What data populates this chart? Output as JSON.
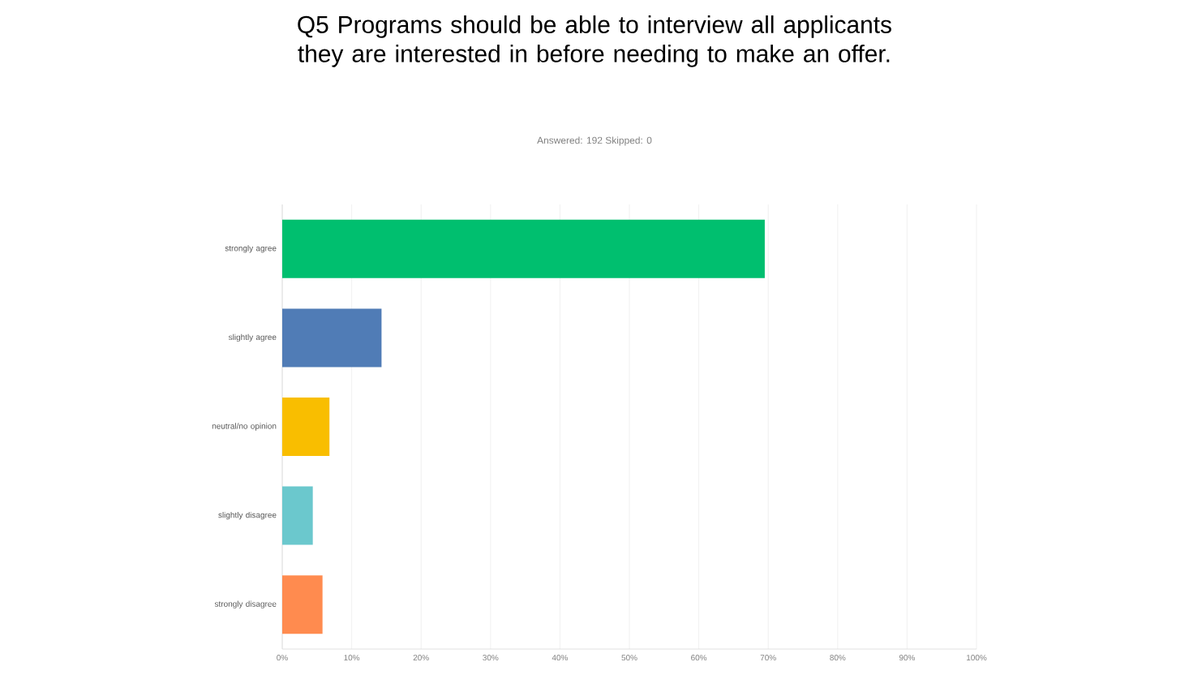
{
  "chart_data": {
    "type": "bar",
    "orientation": "horizontal",
    "title": "Q5 Programs should be able to interview all applicants they are interested in before needing to make an offer.",
    "subtitle": "Answered: 192    Skipped: 0",
    "categories": [
      "strongly agree",
      "slightly agree",
      "neutral/no opinion",
      "slightly disagree",
      "strongly disagree"
    ],
    "values": [
      69.5,
      14.3,
      6.8,
      4.4,
      5.8
    ],
    "colors": [
      "#00bf6f",
      "#507cb6",
      "#f9be00",
      "#6bc8cd",
      "#ff8b4f"
    ],
    "xlim": [
      0,
      100
    ],
    "xticks": [
      {
        "value": 0,
        "label": "0%"
      },
      {
        "value": 10,
        "label": "10%"
      },
      {
        "value": 20,
        "label": "20%"
      },
      {
        "value": 30,
        "label": "30%"
      },
      {
        "value": 40,
        "label": "40%"
      },
      {
        "value": 50,
        "label": "50%"
      },
      {
        "value": 60,
        "label": "60%"
      },
      {
        "value": 70,
        "label": "70%"
      },
      {
        "value": 80,
        "label": "80%"
      },
      {
        "value": 90,
        "label": "90%"
      },
      {
        "value": 100,
        "label": "100%"
      }
    ],
    "grid": "x"
  }
}
